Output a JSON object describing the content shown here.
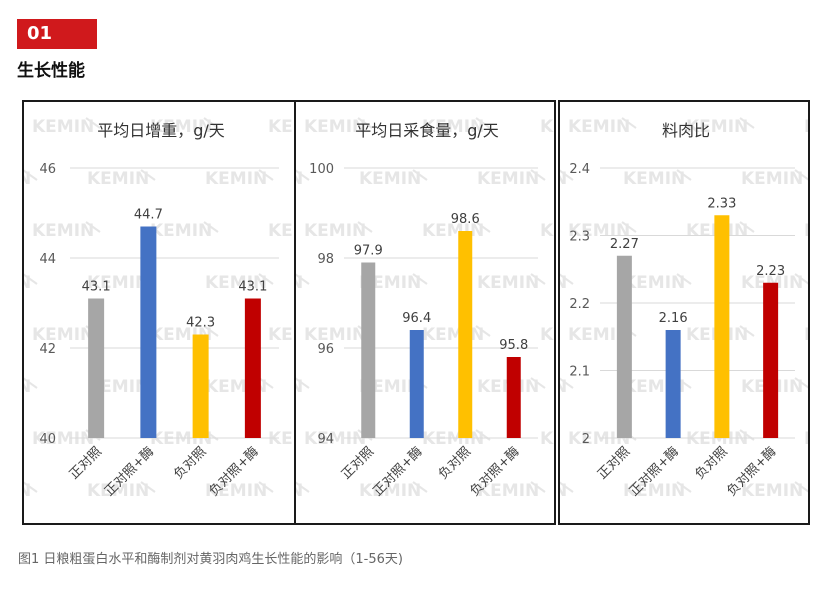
{
  "section": {
    "number": "01",
    "title": "生长性能"
  },
  "watermark": "KEMIN",
  "caption": "图1 日粮粗蛋白水平和酶制剂对黄羽肉鸡生长性能的影响（1-56天)",
  "colors": {
    "gray": "#a6a6a6",
    "blue": "#4472c4",
    "gold": "#ffc000",
    "red": "#c00000",
    "badge": "#d0191c"
  },
  "chart_data": [
    {
      "type": "bar",
      "title": "平均日增重，g/天",
      "categories": [
        "正对照",
        "正对照+酶",
        "负对照",
        "负对照+酶"
      ],
      "values": [
        43.1,
        44.7,
        42.3,
        43.1
      ],
      "value_labels": [
        "43.1",
        "44.7",
        "42.3",
        "43.1"
      ],
      "ylim": [
        40,
        46
      ],
      "yticks": [
        "40",
        "42",
        "44",
        "46"
      ],
      "bar_colors": [
        "#a6a6a6",
        "#4472c4",
        "#ffc000",
        "#c00000"
      ],
      "grid": true
    },
    {
      "type": "bar",
      "title": "平均日采食量，g/天",
      "categories": [
        "正对照",
        "正对照+酶",
        "负对照",
        "负对照+酶"
      ],
      "values": [
        97.9,
        96.4,
        98.6,
        95.8
      ],
      "value_labels": [
        "97.9",
        "96.4",
        "98.6",
        "95.8"
      ],
      "ylim": [
        94,
        100
      ],
      "yticks": [
        "94",
        "96",
        "98",
        "100"
      ],
      "bar_colors": [
        "#a6a6a6",
        "#4472c4",
        "#ffc000",
        "#c00000"
      ],
      "grid": true
    },
    {
      "type": "bar",
      "title": "料肉比",
      "categories": [
        "正对照",
        "正对照+酶",
        "负对照",
        "负对照+酶"
      ],
      "values": [
        2.27,
        2.16,
        2.33,
        2.23
      ],
      "value_labels": [
        "2.27",
        "2.16",
        "2.33",
        "2.23"
      ],
      "ylim": [
        2,
        2.4
      ],
      "yticks": [
        "2",
        "2.1",
        "2.2",
        "2.3",
        "2.4"
      ],
      "bar_colors": [
        "#a6a6a6",
        "#4472c4",
        "#ffc000",
        "#c00000"
      ],
      "grid": true
    }
  ]
}
